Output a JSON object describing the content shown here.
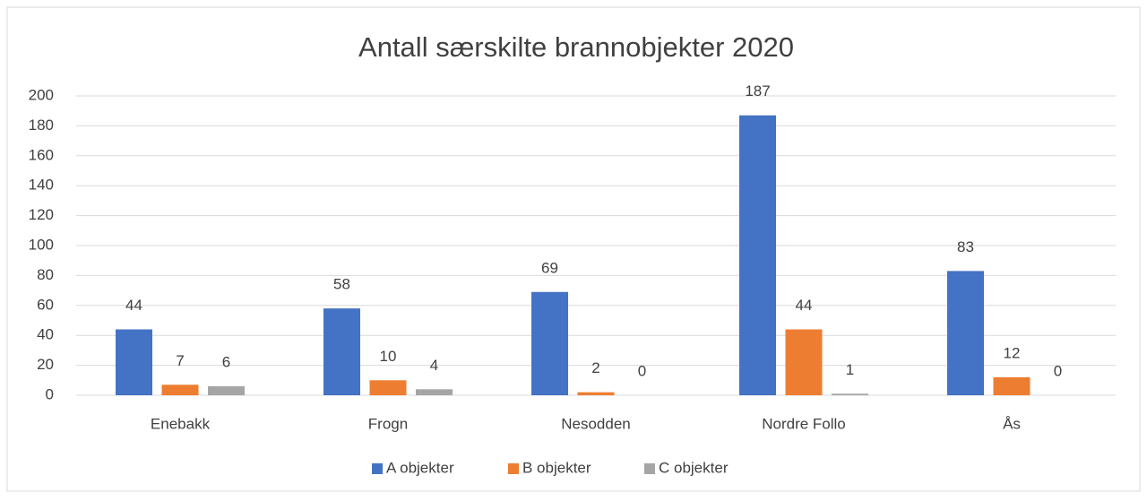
{
  "chart_data": {
    "type": "bar",
    "title": "Antall særskilte brannobjekter 2020",
    "categories": [
      "Enebakk",
      "Frogn",
      "Nesodden",
      "Nordre Follo",
      "Ås"
    ],
    "series": [
      {
        "name": "A objekter",
        "color": "#4472c4",
        "values": [
          44,
          58,
          69,
          187,
          83
        ]
      },
      {
        "name": "B objekter",
        "color": "#ed7d31",
        "values": [
          7,
          10,
          2,
          44,
          12
        ]
      },
      {
        "name": "C objekter",
        "color": "#a5a5a5",
        "values": [
          6,
          4,
          0,
          1,
          0
        ]
      }
    ],
    "ylim": [
      0,
      200
    ],
    "yticks": [
      0,
      20,
      40,
      60,
      80,
      100,
      120,
      140,
      160,
      180,
      200
    ],
    "grid": true,
    "legend": "bottom"
  }
}
